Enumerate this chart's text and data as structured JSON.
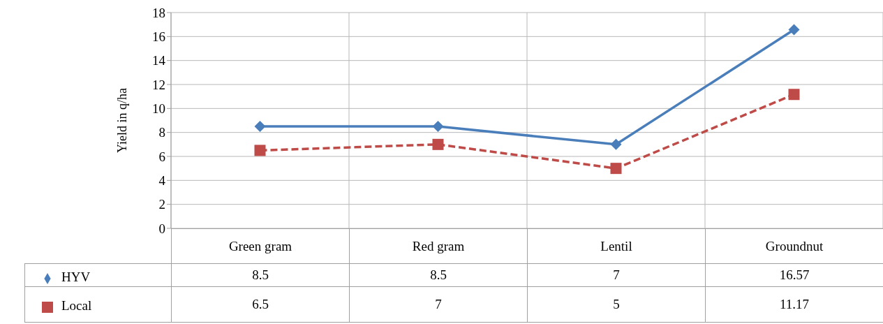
{
  "chart_data": {
    "type": "line",
    "ylabel": "Yield in q/ha",
    "categories": [
      "Green gram",
      "Red gram",
      "Lentil",
      "Groundnut"
    ],
    "series": [
      {
        "name": "HYV",
        "color": "#4a7ebb",
        "values": [
          8.5,
          8.5,
          7,
          16.57
        ],
        "marker": "diamond",
        "line_style": "solid"
      },
      {
        "name": "Local",
        "color": "#be4b48",
        "values": [
          6.5,
          7,
          5,
          11.17
        ],
        "marker": "square",
        "line_style": "dashed"
      }
    ],
    "ylim": [
      0,
      18
    ],
    "yticks": [
      0,
      2,
      4,
      6,
      8,
      10,
      12,
      14,
      16,
      18
    ],
    "grid": true,
    "legend": "bottom left",
    "data_labels": true
  }
}
